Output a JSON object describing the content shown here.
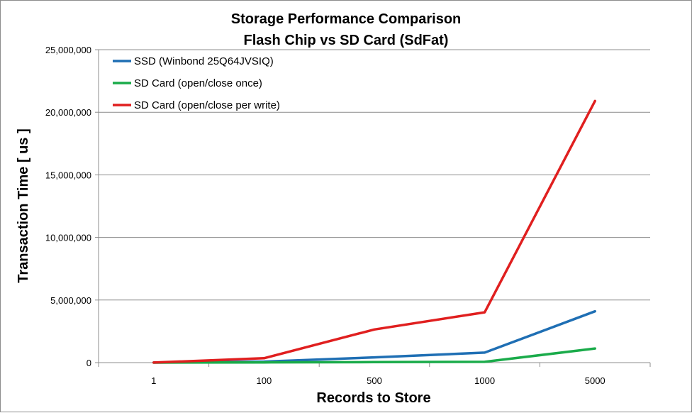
{
  "chart_data": {
    "type": "line",
    "title": "Storage Performance Comparison",
    "subtitle": "Flash Chip vs SD Card (SdFat)",
    "xlabel": "Records to Store",
    "ylabel": "Transaction Time [ us ]",
    "categories": [
      "1",
      "100",
      "500",
      "1000",
      "5000"
    ],
    "ylim": [
      0,
      25000000
    ],
    "yticks": [
      0,
      5000000,
      10000000,
      15000000,
      20000000,
      25000000
    ],
    "ytick_labels": [
      "0",
      "5,000,000",
      "10,000,000",
      "15,000,000",
      "20,000,000",
      "25,000,000"
    ],
    "grid": "horizontal",
    "legend_position": "top-left",
    "series": [
      {
        "name": "SSD (Winbond 25Q64JVSIQ)",
        "color": "#1f6fb4",
        "values": [
          4000,
          80000,
          420000,
          800000,
          4100000
        ]
      },
      {
        "name": "SD Card (open/close once)",
        "color": "#1aab4a",
        "values": [
          2000,
          15000,
          40000,
          60000,
          1130000
        ]
      },
      {
        "name": "SD Card (open/close per write)",
        "color": "#e01f1f",
        "values": [
          5000,
          350000,
          2650000,
          4020000,
          20900000
        ]
      }
    ]
  }
}
